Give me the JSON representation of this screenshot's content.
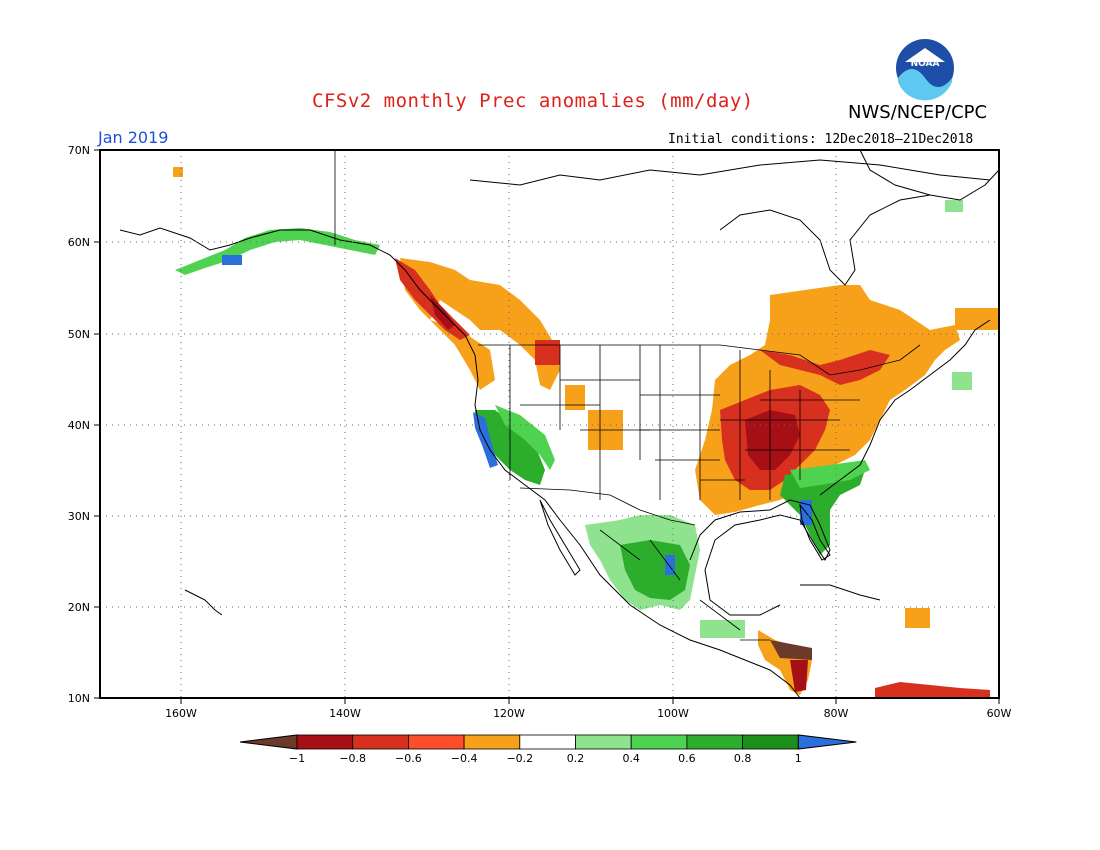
{
  "title": "CFSv2 monthly Prec anomalies (mm/day)",
  "agency": "NWS/NCEP/CPC",
  "logo_text": "NOAA",
  "month": "Jan 2019",
  "initial_conditions": "Initial conditions: 12Dec2018–21Dec2018",
  "lat_labels": [
    "70N",
    "60N",
    "50N",
    "40N",
    "30N",
    "20N",
    "10N"
  ],
  "lon_labels": [
    "160W",
    "140W",
    "120W",
    "100W",
    "80W",
    "60W"
  ],
  "colorbar": {
    "labels": [
      "-1",
      "-0.8",
      "-0.6",
      "-0.4",
      "-0.2",
      "0.2",
      "0.4",
      "0.6",
      "0.8",
      "1"
    ],
    "colors": [
      "#6b3a2a",
      "#a50f15",
      "#d7301f",
      "#fc4e2a",
      "#f7a11a",
      "#ffffff",
      "#8fe38f",
      "#4fd24f",
      "#2cae2c",
      "#1a8f1a",
      "#2a6fdb"
    ]
  }
}
